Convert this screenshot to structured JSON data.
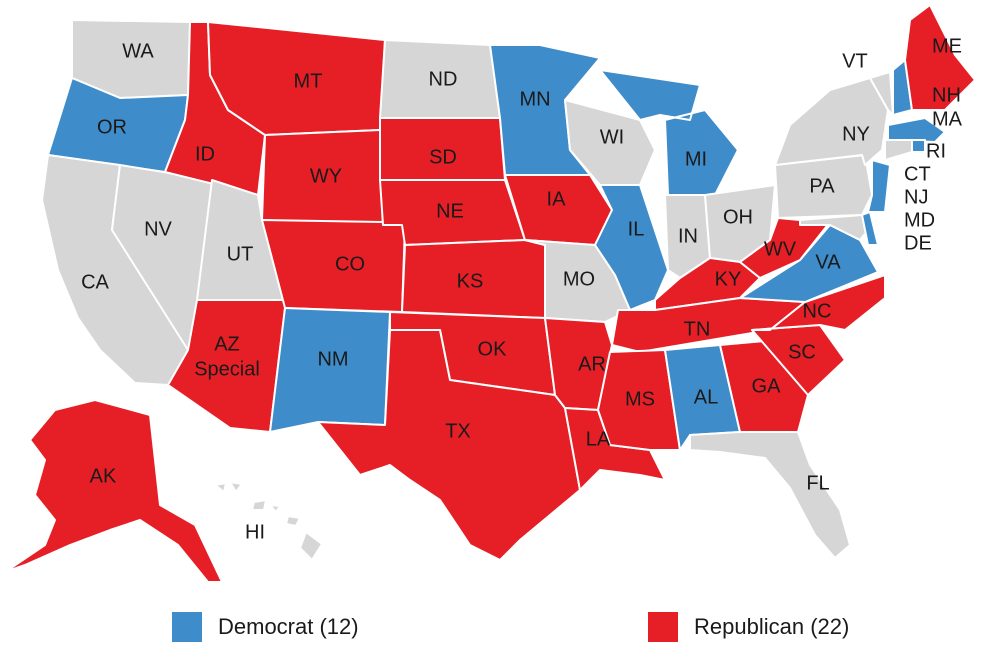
{
  "colors": {
    "democrat": "#3f8ccb",
    "republican": "#e61f26",
    "none": "#d6d6d6"
  },
  "legend": {
    "democrat_label": "Democrat (12)",
    "republican_label": "Republican (22)"
  },
  "states": {
    "WA": {
      "label": "WA",
      "party": "none"
    },
    "OR": {
      "label": "OR",
      "party": "democrat"
    },
    "CA": {
      "label": "CA",
      "party": "none"
    },
    "NV": {
      "label": "NV",
      "party": "none"
    },
    "ID": {
      "label": "ID",
      "party": "republican"
    },
    "MT": {
      "label": "MT",
      "party": "republican"
    },
    "WY": {
      "label": "WY",
      "party": "republican"
    },
    "UT": {
      "label": "UT",
      "party": "none"
    },
    "AZ": {
      "label": "AZ",
      "sublabel": "Special",
      "party": "republican"
    },
    "CO": {
      "label": "CO",
      "party": "republican"
    },
    "NM": {
      "label": "NM",
      "party": "democrat"
    },
    "ND": {
      "label": "ND",
      "party": "none"
    },
    "SD": {
      "label": "SD",
      "party": "republican"
    },
    "NE": {
      "label": "NE",
      "party": "republican"
    },
    "KS": {
      "label": "KS",
      "party": "republican"
    },
    "OK": {
      "label": "OK",
      "party": "republican"
    },
    "TX": {
      "label": "TX",
      "party": "republican"
    },
    "MN": {
      "label": "MN",
      "party": "democrat"
    },
    "IA": {
      "label": "IA",
      "party": "republican"
    },
    "MO": {
      "label": "MO",
      "party": "none"
    },
    "AR": {
      "label": "AR",
      "party": "republican"
    },
    "LA": {
      "label": "LA",
      "party": "republican"
    },
    "WI": {
      "label": "WI",
      "party": "none"
    },
    "IL": {
      "label": "IL",
      "party": "democrat"
    },
    "MI": {
      "label": "MI",
      "party": "democrat"
    },
    "IN": {
      "label": "IN",
      "party": "none"
    },
    "OH": {
      "label": "OH",
      "party": "none"
    },
    "KY": {
      "label": "KY",
      "party": "republican"
    },
    "TN": {
      "label": "TN",
      "party": "republican"
    },
    "MS": {
      "label": "MS",
      "party": "republican"
    },
    "AL": {
      "label": "AL",
      "party": "democrat"
    },
    "GA": {
      "label": "GA",
      "party": "republican"
    },
    "FL": {
      "label": "FL",
      "party": "none"
    },
    "SC": {
      "label": "SC",
      "party": "republican"
    },
    "NC": {
      "label": "NC",
      "party": "republican"
    },
    "VA": {
      "label": "VA",
      "party": "democrat"
    },
    "WV": {
      "label": "WV",
      "party": "republican"
    },
    "PA": {
      "label": "PA",
      "party": "none"
    },
    "NY": {
      "label": "NY",
      "party": "none"
    },
    "VT": {
      "label": "VT",
      "party": "none"
    },
    "NH": {
      "label": "NH",
      "party": "democrat"
    },
    "ME": {
      "label": "ME",
      "party": "republican"
    },
    "MA": {
      "label": "MA",
      "party": "democrat"
    },
    "RI": {
      "label": "RI",
      "party": "democrat"
    },
    "CT": {
      "label": "CT",
      "party": "none"
    },
    "NJ": {
      "label": "NJ",
      "party": "democrat"
    },
    "MD": {
      "label": "MD",
      "party": "none"
    },
    "DE": {
      "label": "DE",
      "party": "democrat"
    },
    "AK": {
      "label": "AK",
      "party": "republican"
    },
    "HI": {
      "label": "HI",
      "party": "none"
    }
  }
}
